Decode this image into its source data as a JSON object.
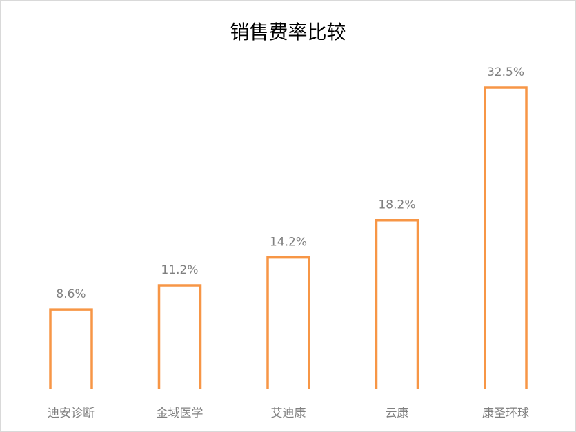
{
  "chart_data": {
    "type": "bar",
    "title": "销售费率比较",
    "categories": [
      "迪安诊断",
      "金域医学",
      "艾迪康",
      "云康",
      "康圣环球"
    ],
    "values": [
      8.6,
      11.2,
      14.2,
      18.2,
      32.5
    ],
    "data_labels": [
      "8.6%",
      "11.2%",
      "14.2%",
      "18.2%",
      "32.5%"
    ],
    "value_unit": "%",
    "bar_style": "outline",
    "bar_color": "#F79646",
    "grid": false,
    "legend": "none",
    "ylim": [
      0,
      32.5
    ]
  }
}
